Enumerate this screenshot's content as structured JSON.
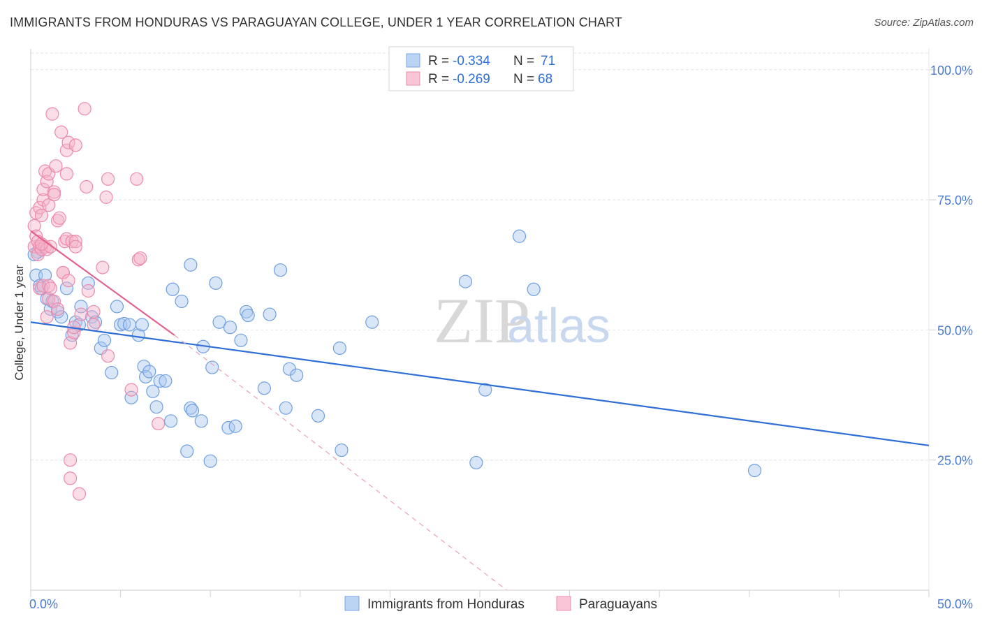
{
  "title": "IMMIGRANTS FROM HONDURAS VS PARAGUAYAN COLLEGE, UNDER 1 YEAR CORRELATION CHART",
  "source": "Source: ZipAtlas.com",
  "watermark": {
    "zip": "ZIP",
    "atlas": "atlas"
  },
  "colors": {
    "blue": "#2f6fd6",
    "blue_fill": "#a9c8f0",
    "pink": "#e5608e",
    "pink_fill": "#f5b4c9",
    "grid": "#e4e4e4",
    "tick": "#4a7bd0"
  },
  "legend": {
    "rows": [
      {
        "r_label": "R = ",
        "r_value": "-0.334",
        "n_label": "N = ",
        "n_value": "71"
      },
      {
        "r_label": "R = ",
        "r_value": "-0.269",
        "n_label": "N = ",
        "n_value": "68"
      }
    ]
  },
  "chart_data": {
    "type": "scatter",
    "title": "IMMIGRANTS FROM HONDURAS VS PARAGUAYAN COLLEGE, UNDER 1 YEAR CORRELATION CHART",
    "xlabel": "",
    "ylabel": "College, Under 1 year",
    "xlim": [
      0,
      50
    ],
    "ylim": [
      0,
      104
    ],
    "x_tick_labels": [
      "0.0%",
      "50.0%"
    ],
    "y_ticks": [
      25,
      50,
      75,
      100
    ],
    "y_tick_labels": [
      "25.0%",
      "50.0%",
      "75.0%",
      "100.0%"
    ],
    "grid": true,
    "legend_position": "top-center",
    "series": [
      {
        "name": "Immigrants from Honduras",
        "color": "#2f6fd6",
        "R": -0.334,
        "N": 71,
        "trend": {
          "x": [
            0,
            50
          ],
          "y": [
            51.5,
            27.8
          ]
        },
        "points": [
          [
            0.3,
            60.5
          ],
          [
            0.4,
            65.0
          ],
          [
            0.5,
            58.5
          ],
          [
            0.6,
            58.0
          ],
          [
            0.8,
            60.5
          ],
          [
            0.9,
            56.0
          ],
          [
            1.1,
            54.0
          ],
          [
            1.2,
            55.5
          ],
          [
            1.5,
            53.5
          ],
          [
            1.7,
            52.5
          ],
          [
            2.0,
            58.0
          ],
          [
            2.3,
            49.0
          ],
          [
            2.5,
            51.5
          ],
          [
            2.7,
            51.0
          ],
          [
            2.8,
            54.5
          ],
          [
            3.2,
            59.0
          ],
          [
            3.4,
            52.5
          ],
          [
            3.6,
            51.5
          ],
          [
            3.9,
            46.5
          ],
          [
            4.1,
            48.0
          ],
          [
            4.5,
            41.8
          ],
          [
            4.8,
            54.5
          ],
          [
            5.0,
            51.0
          ],
          [
            5.2,
            51.2
          ],
          [
            5.5,
            51.0
          ],
          [
            5.6,
            37.0
          ],
          [
            6.0,
            49.0
          ],
          [
            6.2,
            51.0
          ],
          [
            6.3,
            43.0
          ],
          [
            6.4,
            41.0
          ],
          [
            6.6,
            42.0
          ],
          [
            6.8,
            38.2
          ],
          [
            7.0,
            35.2
          ],
          [
            7.2,
            40.2
          ],
          [
            7.5,
            40.2
          ],
          [
            7.8,
            32.5
          ],
          [
            7.9,
            57.8
          ],
          [
            8.4,
            55.5
          ],
          [
            8.7,
            26.7
          ],
          [
            8.9,
            62.5
          ],
          [
            8.9,
            35.0
          ],
          [
            9.0,
            34.5
          ],
          [
            9.5,
            32.5
          ],
          [
            9.6,
            46.8
          ],
          [
            10.0,
            24.8
          ],
          [
            10.1,
            42.8
          ],
          [
            10.3,
            59.0
          ],
          [
            10.5,
            51.5
          ],
          [
            11.0,
            31.2
          ],
          [
            11.1,
            50.5
          ],
          [
            11.4,
            31.5
          ],
          [
            11.7,
            48.0
          ],
          [
            12.0,
            53.5
          ],
          [
            12.1,
            52.8
          ],
          [
            13.0,
            38.8
          ],
          [
            13.3,
            53.0
          ],
          [
            13.9,
            61.5
          ],
          [
            14.2,
            35.0
          ],
          [
            14.4,
            42.5
          ],
          [
            14.8,
            41.3
          ],
          [
            16.0,
            33.5
          ],
          [
            17.2,
            46.5
          ],
          [
            17.3,
            26.9
          ],
          [
            19.0,
            51.5
          ],
          [
            24.2,
            59.3
          ],
          [
            24.8,
            24.5
          ],
          [
            25.3,
            38.5
          ],
          [
            27.2,
            68.0
          ],
          [
            28.0,
            57.8
          ],
          [
            40.3,
            23.0
          ],
          [
            0.2,
            64.5
          ]
        ]
      },
      {
        "name": "Paraguayans",
        "color": "#e5608e",
        "R": -0.269,
        "N": 68,
        "trend": {
          "x": [
            0,
            8
          ],
          "y": [
            69.0,
            49.0
          ]
        },
        "trend_dashed": {
          "x": [
            8,
            26.5
          ],
          "y": [
            49.0,
            0
          ]
        },
        "points": [
          [
            0.2,
            70.0
          ],
          [
            0.2,
            66.0
          ],
          [
            0.3,
            72.5
          ],
          [
            0.3,
            68.0
          ],
          [
            0.4,
            67.0
          ],
          [
            0.4,
            64.5
          ],
          [
            0.5,
            73.5
          ],
          [
            0.5,
            66.0
          ],
          [
            0.5,
            58.0
          ],
          [
            0.6,
            72.0
          ],
          [
            0.6,
            65.5
          ],
          [
            0.7,
            75.0
          ],
          [
            0.7,
            77.0
          ],
          [
            0.7,
            58.5
          ],
          [
            0.8,
            80.5
          ],
          [
            0.8,
            66.0
          ],
          [
            0.9,
            78.5
          ],
          [
            0.9,
            65.5
          ],
          [
            0.9,
            52.5
          ],
          [
            1.0,
            80.0
          ],
          [
            1.0,
            74.0
          ],
          [
            1.0,
            58.5
          ],
          [
            1.0,
            56.0
          ],
          [
            1.1,
            66.0
          ],
          [
            1.1,
            58.0
          ],
          [
            1.2,
            91.5
          ],
          [
            1.3,
            76.5
          ],
          [
            1.3,
            76.0
          ],
          [
            1.3,
            55.5
          ],
          [
            1.4,
            81.5
          ],
          [
            1.5,
            71.0
          ],
          [
            1.6,
            71.5
          ],
          [
            1.7,
            88.0
          ],
          [
            1.8,
            61.0
          ],
          [
            1.8,
            61.0
          ],
          [
            1.9,
            67.0
          ],
          [
            2.0,
            67.5
          ],
          [
            2.0,
            80.0
          ],
          [
            2.0,
            84.5
          ],
          [
            2.1,
            86.0
          ],
          [
            2.1,
            59.5
          ],
          [
            2.2,
            21.5
          ],
          [
            2.2,
            25.0
          ],
          [
            2.2,
            47.5
          ],
          [
            2.3,
            67.0
          ],
          [
            2.4,
            49.5
          ],
          [
            2.4,
            50.5
          ],
          [
            2.5,
            85.5
          ],
          [
            2.5,
            67.0
          ],
          [
            2.5,
            66.0
          ],
          [
            2.7,
            18.5
          ],
          [
            2.8,
            53.0
          ],
          [
            3.0,
            92.5
          ],
          [
            3.1,
            77.5
          ],
          [
            3.2,
            57.5
          ],
          [
            3.5,
            53.5
          ],
          [
            3.5,
            51.0
          ],
          [
            4.0,
            62.0
          ],
          [
            4.2,
            75.5
          ],
          [
            4.3,
            79.0
          ],
          [
            4.3,
            45.0
          ],
          [
            5.6,
            38.5
          ],
          [
            5.9,
            79.0
          ],
          [
            6.0,
            63.5
          ],
          [
            6.1,
            63.8
          ],
          [
            7.1,
            32.0
          ],
          [
            1.5,
            54.0
          ],
          [
            0.6,
            66.5
          ]
        ]
      }
    ]
  }
}
